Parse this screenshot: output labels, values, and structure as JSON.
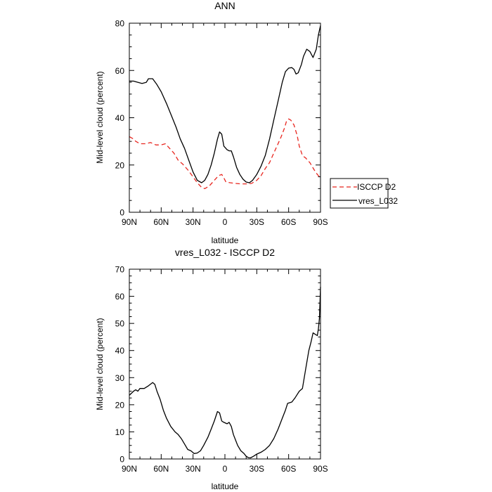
{
  "chart_data": [
    {
      "type": "line",
      "title": "ANN",
      "xlabel": "latitude",
      "ylabel": "Mid-level cloud (percent)",
      "xlim": [
        90,
        -90
      ],
      "ylim": [
        0,
        80
      ],
      "x_ticks": [
        {
          "value": 90,
          "label": "90N"
        },
        {
          "value": 60,
          "label": "60N"
        },
        {
          "value": 30,
          "label": "30N"
        },
        {
          "value": 0,
          "label": "0"
        },
        {
          "value": -30,
          "label": "30S"
        },
        {
          "value": -60,
          "label": "60S"
        },
        {
          "value": -90,
          "label": "90S"
        }
      ],
      "y_ticks": [
        0,
        20,
        40,
        60,
        80
      ],
      "legend": {
        "placement": "right"
      },
      "series": [
        {
          "name": "ISCCP D2",
          "color": "#e8261f",
          "dash": "dashed",
          "points": [
            [
              90,
              32
            ],
            [
              86,
              31
            ],
            [
              84,
              30
            ],
            [
              80,
              29
            ],
            [
              75,
              29
            ],
            [
              70,
              29.5
            ],
            [
              65,
              28.5
            ],
            [
              60,
              28.5
            ],
            [
              56,
              29
            ],
            [
              52,
              27
            ],
            [
              48,
              25
            ],
            [
              44,
              22
            ],
            [
              40,
              20.5
            ],
            [
              35,
              18
            ],
            [
              30,
              15
            ],
            [
              26,
              12.5
            ],
            [
              22,
              10.5
            ],
            [
              19,
              10
            ],
            [
              15,
              11
            ],
            [
              12,
              12.5
            ],
            [
              10,
              13.5
            ],
            [
              6,
              15.5
            ],
            [
              3,
              16
            ],
            [
              1,
              14.5
            ],
            [
              -1,
              12.8
            ],
            [
              -5,
              12.5
            ],
            [
              -10,
              12.2
            ],
            [
              -15,
              12
            ],
            [
              -20,
              12
            ],
            [
              -25,
              12.2
            ],
            [
              -30,
              13.5
            ],
            [
              -34,
              15.5
            ],
            [
              -38,
              18.5
            ],
            [
              -42,
              21
            ],
            [
              -46,
              25
            ],
            [
              -50,
              29
            ],
            [
              -53,
              32
            ],
            [
              -56,
              35.5
            ],
            [
              -58,
              38.5
            ],
            [
              -60,
              39.5
            ],
            [
              -62,
              39
            ],
            [
              -65,
              37
            ],
            [
              -68,
              32.5
            ],
            [
              -70,
              28
            ],
            [
              -73,
              24
            ],
            [
              -76,
              23
            ],
            [
              -80,
              21
            ],
            [
              -84,
              18
            ],
            [
              -87,
              16
            ],
            [
              -89,
              15
            ]
          ]
        },
        {
          "name": "vres_L032",
          "color": "#000000",
          "dash": "solid",
          "points": [
            [
              90,
              55.5
            ],
            [
              86,
              55.5
            ],
            [
              82,
              55
            ],
            [
              78,
              54.5
            ],
            [
              74,
              55
            ],
            [
              72,
              56.5
            ],
            [
              68,
              56.5
            ],
            [
              64,
              54
            ],
            [
              60,
              51
            ],
            [
              55,
              46
            ],
            [
              50,
              40.5
            ],
            [
              46,
              36
            ],
            [
              42,
              31
            ],
            [
              38,
              27
            ],
            [
              34,
              22
            ],
            [
              30,
              17
            ],
            [
              26,
              13.5
            ],
            [
              22,
              12.5
            ],
            [
              19,
              13.5
            ],
            [
              16,
              16
            ],
            [
              13,
              20
            ],
            [
              10,
              25
            ],
            [
              7,
              31
            ],
            [
              5,
              34
            ],
            [
              3,
              33
            ],
            [
              1,
              28
            ],
            [
              -2,
              26.5
            ],
            [
              -4,
              26
            ],
            [
              -6,
              26
            ],
            [
              -8,
              23.5
            ],
            [
              -11,
              19
            ],
            [
              -14,
              16
            ],
            [
              -17,
              14
            ],
            [
              -20,
              12.8
            ],
            [
              -23,
              12.5
            ],
            [
              -26,
              13.5
            ],
            [
              -30,
              16
            ],
            [
              -34,
              19.5
            ],
            [
              -38,
              24
            ],
            [
              -42,
              31
            ],
            [
              -46,
              39
            ],
            [
              -50,
              47
            ],
            [
              -54,
              55
            ],
            [
              -57,
              59.5
            ],
            [
              -60,
              61
            ],
            [
              -63,
              61.2
            ],
            [
              -65,
              60.5
            ],
            [
              -67,
              58.5
            ],
            [
              -69,
              59
            ],
            [
              -72,
              62.5
            ],
            [
              -74,
              66
            ],
            [
              -77,
              69
            ],
            [
              -80,
              68
            ],
            [
              -83,
              65.5
            ],
            [
              -86,
              69
            ],
            [
              -88,
              75
            ],
            [
              -90,
              79
            ]
          ]
        }
      ]
    },
    {
      "type": "line",
      "title": "vres_L032 - ISCCP D2",
      "xlabel": "latitude",
      "ylabel": "Mid-level cloud (percent)",
      "xlim": [
        90,
        -90
      ],
      "ylim": [
        0,
        70
      ],
      "x_ticks": [
        {
          "value": 90,
          "label": "90N"
        },
        {
          "value": 60,
          "label": "60N"
        },
        {
          "value": 30,
          "label": "30N"
        },
        {
          "value": 0,
          "label": "0"
        },
        {
          "value": -30,
          "label": "30S"
        },
        {
          "value": -60,
          "label": "60S"
        },
        {
          "value": -90,
          "label": "90S"
        }
      ],
      "y_ticks": [
        0,
        10,
        20,
        30,
        40,
        50,
        60,
        70
      ],
      "series": [
        {
          "name": "vres_L032 - ISCCP D2",
          "color": "#000000",
          "dash": "solid",
          "points": [
            [
              90,
              23.5
            ],
            [
              86,
              25
            ],
            [
              84,
              25.5
            ],
            [
              82,
              25
            ],
            [
              80,
              26
            ],
            [
              76,
              26
            ],
            [
              72,
              27
            ],
            [
              68,
              28.2
            ],
            [
              66,
              27.5
            ],
            [
              64,
              25
            ],
            [
              61,
              22
            ],
            [
              58,
              18
            ],
            [
              55,
              15
            ],
            [
              51,
              12
            ],
            [
              47,
              10
            ],
            [
              44,
              9
            ],
            [
              41,
              7.5
            ],
            [
              38,
              5.5
            ],
            [
              35,
              3.5
            ],
            [
              32,
              3
            ],
            [
              29,
              2
            ],
            [
              26,
              2.2
            ],
            [
              23,
              3
            ],
            [
              20,
              5
            ],
            [
              16,
              8
            ],
            [
              13,
              11
            ],
            [
              10,
              14
            ],
            [
              7,
              17.5
            ],
            [
              5,
              17
            ],
            [
              3,
              14
            ],
            [
              1,
              13.5
            ],
            [
              -2,
              13
            ],
            [
              -4,
              13.5
            ],
            [
              -6,
              12
            ],
            [
              -8,
              9
            ],
            [
              -10,
              7
            ],
            [
              -12,
              5
            ],
            [
              -15,
              3
            ],
            [
              -18,
              2
            ],
            [
              -20,
              1
            ],
            [
              -22,
              0.5
            ],
            [
              -24,
              0.4
            ],
            [
              -27,
              1
            ],
            [
              -30,
              1.8
            ],
            [
              -34,
              2.5
            ],
            [
              -38,
              3.5
            ],
            [
              -42,
              5
            ],
            [
              -46,
              7.5
            ],
            [
              -50,
              11
            ],
            [
              -54,
              15
            ],
            [
              -57,
              18
            ],
            [
              -59,
              20.5
            ],
            [
              -63,
              21
            ],
            [
              -66,
              22.5
            ],
            [
              -70,
              25
            ],
            [
              -73,
              26
            ],
            [
              -76,
              33
            ],
            [
              -79,
              40
            ],
            [
              -81,
              43
            ],
            [
              -83,
              46.5
            ],
            [
              -85,
              46
            ],
            [
              -87,
              45.5
            ],
            [
              -88,
              48
            ],
            [
              -89,
              52
            ],
            [
              -90,
              63.5
            ]
          ]
        }
      ]
    }
  ]
}
